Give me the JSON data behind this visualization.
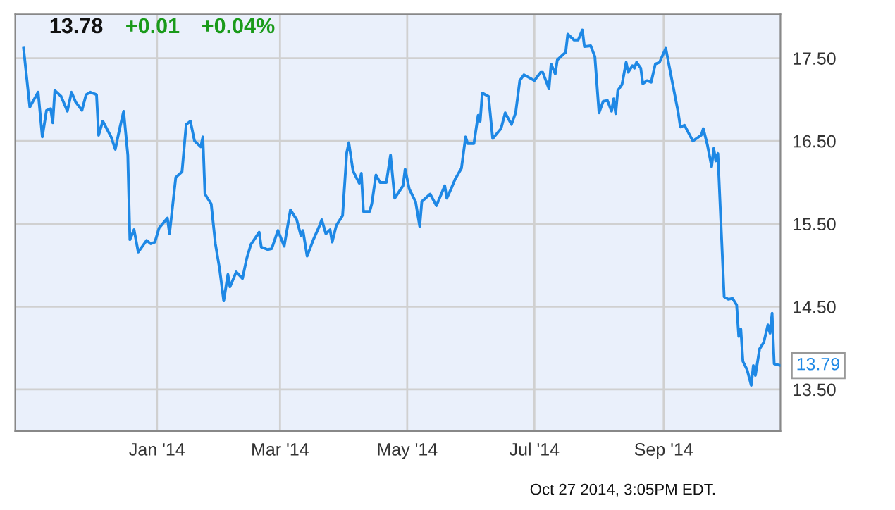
{
  "chart_data": {
    "type": "line",
    "x": [
      "2013-10-29",
      "2013-11-01",
      "2013-11-03",
      "2013-11-05",
      "2013-11-07",
      "2013-11-09",
      "2013-11-11",
      "2013-11-12",
      "2013-11-13",
      "2013-11-16",
      "2013-11-19",
      "2013-11-21",
      "2013-11-23",
      "2013-11-26",
      "2013-11-28",
      "2013-11-30",
      "2013-12-03",
      "2013-12-04",
      "2013-12-06",
      "2013-12-10",
      "2013-12-12",
      "2013-12-14",
      "2013-12-16",
      "2013-12-18",
      "2013-12-19",
      "2013-12-21",
      "2013-12-23",
      "2013-12-27",
      "2013-12-29",
      "2013-12-31",
      "2014-01-02",
      "2014-01-06",
      "2014-01-07",
      "2014-01-10",
      "2014-01-13",
      "2014-01-15",
      "2014-01-17",
      "2014-01-19",
      "2014-01-22",
      "2014-01-23",
      "2014-01-24",
      "2014-01-27",
      "2014-01-29",
      "2014-01-31",
      "2014-02-02",
      "2014-02-04",
      "2014-02-05",
      "2014-02-08",
      "2014-02-11",
      "2014-02-13",
      "2014-02-15",
      "2014-02-19",
      "2014-02-20",
      "2014-02-23",
      "2014-02-25",
      "2014-02-28",
      "2014-03-03",
      "2014-03-06",
      "2014-03-09",
      "2014-03-11",
      "2014-03-12",
      "2014-03-14",
      "2014-03-17",
      "2014-03-20",
      "2014-03-21",
      "2014-03-23",
      "2014-03-25",
      "2014-03-26",
      "2014-03-28",
      "2014-03-31",
      "2014-04-02",
      "2014-04-03",
      "2014-04-05",
      "2014-04-08",
      "2014-04-09",
      "2014-04-10",
      "2014-04-13",
      "2014-04-14",
      "2014-04-16",
      "2014-04-18",
      "2014-04-21",
      "2014-04-23",
      "2014-04-25",
      "2014-04-29",
      "2014-04-30",
      "2014-05-02",
      "2014-05-05",
      "2014-05-07",
      "2014-05-08",
      "2014-05-12",
      "2014-05-15",
      "2014-05-19",
      "2014-05-20",
      "2014-05-22",
      "2014-05-24",
      "2014-05-27",
      "2014-05-29",
      "2014-05-30",
      "2014-06-02",
      "2014-06-04",
      "2014-06-05",
      "2014-06-06",
      "2014-06-09",
      "2014-06-11",
      "2014-06-15",
      "2014-06-17",
      "2014-06-20",
      "2014-06-22",
      "2014-06-24",
      "2014-06-26",
      "2014-07-01",
      "2014-07-04",
      "2014-07-05",
      "2014-07-08",
      "2014-07-09",
      "2014-07-11",
      "2014-07-12",
      "2014-07-15",
      "2014-07-16",
      "2014-07-17",
      "2014-07-20",
      "2014-07-22",
      "2014-07-24",
      "2014-07-25",
      "2014-07-28",
      "2014-07-30",
      "2014-08-01",
      "2014-08-03",
      "2014-08-05",
      "2014-08-07",
      "2014-08-08",
      "2014-08-09",
      "2014-08-10",
      "2014-08-12",
      "2014-08-14",
      "2014-08-15",
      "2014-08-17",
      "2014-08-18",
      "2014-08-19",
      "2014-08-21",
      "2014-08-22",
      "2014-08-24",
      "2014-08-26",
      "2014-08-28",
      "2014-08-30",
      "2014-09-02",
      "2014-09-05",
      "2014-09-08",
      "2014-09-09",
      "2014-09-11",
      "2014-09-15",
      "2014-09-19",
      "2014-09-20",
      "2014-09-22",
      "2014-09-24",
      "2014-09-25",
      "2014-09-26",
      "2014-09-27",
      "2014-09-30",
      "2014-10-02",
      "2014-10-04",
      "2014-10-06",
      "2014-10-07",
      "2014-10-08",
      "2014-10-09",
      "2014-10-11",
      "2014-10-13",
      "2014-10-14",
      "2014-10-15",
      "2014-10-17",
      "2014-10-19",
      "2014-10-21",
      "2014-10-22",
      "2014-10-23",
      "2014-10-24",
      "2014-10-27"
    ],
    "series": [
      {
        "color": "#1e88e5",
        "values": [
          17.62,
          16.91,
          17.0,
          17.09,
          16.55,
          16.87,
          16.89,
          16.72,
          17.11,
          17.04,
          16.86,
          17.09,
          16.97,
          16.87,
          17.06,
          17.09,
          17.06,
          16.57,
          16.74,
          16.55,
          16.4,
          16.64,
          16.86,
          16.33,
          15.31,
          15.43,
          15.16,
          15.3,
          15.26,
          15.28,
          15.45,
          15.57,
          15.38,
          16.06,
          16.13,
          16.7,
          16.74,
          16.5,
          16.43,
          16.55,
          15.86,
          15.74,
          15.26,
          14.96,
          14.57,
          14.89,
          14.74,
          14.92,
          14.84,
          15.08,
          15.25,
          15.4,
          15.22,
          15.19,
          15.2,
          15.42,
          15.23,
          15.67,
          15.55,
          15.36,
          15.42,
          15.11,
          15.31,
          15.48,
          15.55,
          15.38,
          15.43,
          15.28,
          15.48,
          15.6,
          16.36,
          16.48,
          16.14,
          15.99,
          16.11,
          15.65,
          15.65,
          15.74,
          16.09,
          16.0,
          16.0,
          16.33,
          15.81,
          15.96,
          16.16,
          15.92,
          15.77,
          15.47,
          15.77,
          15.86,
          15.72,
          15.96,
          15.81,
          15.92,
          16.04,
          16.17,
          16.55,
          16.47,
          16.47,
          16.81,
          16.74,
          17.08,
          17.04,
          16.53,
          16.65,
          16.84,
          16.7,
          16.84,
          17.23,
          17.3,
          17.23,
          17.33,
          17.33,
          17.13,
          17.43,
          17.31,
          17.48,
          17.55,
          17.57,
          17.79,
          17.72,
          17.72,
          17.84,
          17.64,
          17.65,
          17.52,
          16.84,
          16.98,
          16.99,
          16.86,
          17.01,
          16.83,
          17.11,
          17.18,
          17.45,
          17.33,
          17.41,
          17.38,
          17.45,
          17.38,
          17.19,
          17.23,
          17.21,
          17.43,
          17.45,
          17.62,
          17.23,
          16.84,
          16.67,
          16.69,
          16.5,
          16.57,
          16.65,
          16.45,
          16.19,
          16.41,
          16.26,
          16.35,
          14.62,
          14.59,
          14.6,
          14.52,
          14.14,
          14.23,
          13.84,
          13.74,
          13.55,
          13.79,
          13.67,
          13.99,
          14.07,
          14.28,
          14.18,
          14.42,
          13.81,
          13.79
        ]
      }
    ],
    "xlim": [
      "2013-10-25",
      "2014-10-27"
    ],
    "xticks": [
      {
        "value": "2014-01-01",
        "label": "Jan '14"
      },
      {
        "value": "2014-03-01",
        "label": "Mar '14"
      },
      {
        "value": "2014-05-01",
        "label": "May '14"
      },
      {
        "value": "2014-07-01",
        "label": "Jul '14"
      },
      {
        "value": "2014-09-01",
        "label": "Sep '14"
      }
    ],
    "ylim": [
      13.0,
      18.03
    ],
    "yticks": [
      {
        "value": 13.5,
        "label": "13.50"
      },
      {
        "value": 14.5,
        "label": "14.50"
      },
      {
        "value": 15.5,
        "label": "15.50"
      },
      {
        "value": 16.5,
        "label": "16.50"
      },
      {
        "value": 17.5,
        "label": "17.50"
      }
    ],
    "grid": true,
    "legend": false,
    "marker": "none",
    "line_style": "solid",
    "annotations": [
      "13.78",
      "+0.01",
      "+0.04%",
      {
        "text": "13.79",
        "x": "2014-10-27",
        "y": 13.79
      },
      "Oct 27 2014, 3:05PM EDT."
    ]
  }
}
